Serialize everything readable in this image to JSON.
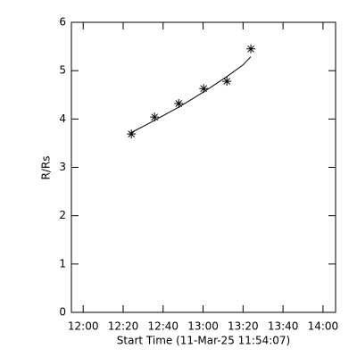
{
  "chart_data": {
    "type": "scatter",
    "xlabel": "Start Time (11-Mar-25 11:54:07)",
    "ylabel": "R/Rs",
    "xlim": [
      -5.9,
      126.3
    ],
    "ylim": [
      0,
      6
    ],
    "xticks": [
      {
        "value": 0,
        "label": "12:00"
      },
      {
        "value": 20,
        "label": "12:20"
      },
      {
        "value": 40,
        "label": "12:40"
      },
      {
        "value": 60,
        "label": "13:00"
      },
      {
        "value": 80,
        "label": "13:20"
      },
      {
        "value": 100,
        "label": "13:40"
      },
      {
        "value": 120,
        "label": "14:00"
      }
    ],
    "yticks": [
      0,
      1,
      2,
      3,
      4,
      5,
      6
    ],
    "series": [
      {
        "type": "scatter",
        "marker": "asterisk",
        "color": "#000000",
        "x": [
          24.1,
          35.7,
          47.8,
          60.3,
          71.9,
          83.9
        ],
        "values": [
          3.69,
          4.04,
          4.32,
          4.63,
          4.78,
          5.45
        ]
      },
      {
        "type": "line",
        "color": "#000000",
        "x": [
          24.1,
          32,
          40,
          48,
          56,
          64,
          72,
          80,
          83.9
        ],
        "values": [
          3.72,
          3.89,
          4.07,
          4.25,
          4.45,
          4.66,
          4.88,
          5.12,
          5.29
        ]
      }
    ]
  }
}
